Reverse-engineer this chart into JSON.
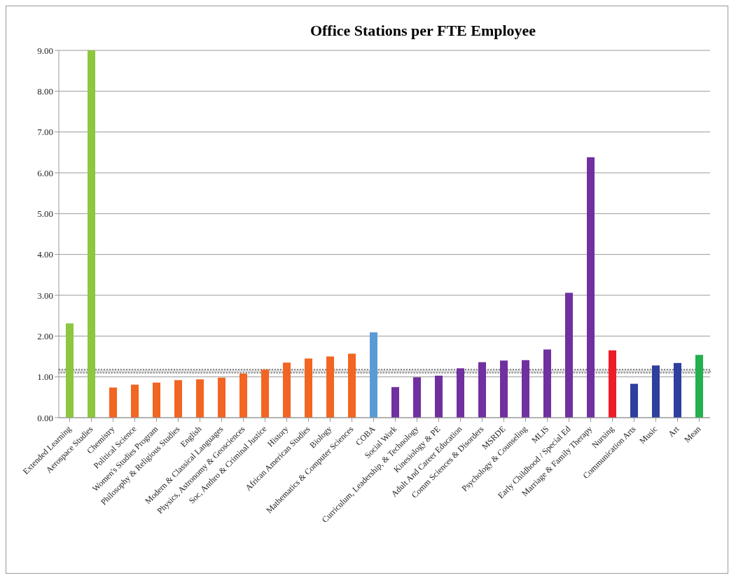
{
  "chart_data": {
    "type": "bar",
    "title": "Office Stations per FTE Employee",
    "categories": [
      "Extended Learning",
      "Aerospace Studies",
      "Chemistry",
      "Political Science",
      "Women's Studies Program",
      "Philosophy & Religious Studies",
      "English",
      "Modern & Classical Languages",
      "Physics, Astronomy & Geosciences",
      "Soc, Anthro & Criminal Justice",
      "History",
      "African American Studies",
      "Biology",
      "Mathematics & Computer Sciences",
      "COBA",
      "Social Work",
      "Curriculum, Leadership, & Technology",
      "Kinesiology & PE",
      "Adult And Career Education",
      "Comm Sciences & Disorders",
      "MSRDE",
      "Psychology & Counseling",
      "MLIS",
      "Early Childhood / Special Ed",
      "Marriage & Family Therapy",
      "Nursing",
      "Communication Arts",
      "Music",
      "Art",
      "Mean"
    ],
    "values": [
      2.31,
      9.0,
      0.74,
      0.81,
      0.86,
      0.92,
      0.94,
      0.98,
      1.08,
      1.18,
      1.35,
      1.45,
      1.5,
      1.57,
      2.09,
      0.75,
      0.99,
      1.03,
      1.21,
      1.36,
      1.4,
      1.41,
      1.67,
      3.06,
      6.38,
      1.65,
      0.83,
      1.28,
      1.34,
      1.54
    ],
    "colors": [
      "#8dc63f",
      "#8dc63f",
      "#f26522",
      "#f26522",
      "#f26522",
      "#f26522",
      "#f26522",
      "#f26522",
      "#f26522",
      "#f26522",
      "#f26522",
      "#f26522",
      "#f26522",
      "#f26522",
      "#5b9bd5",
      "#7030a0",
      "#7030a0",
      "#7030a0",
      "#7030a0",
      "#7030a0",
      "#7030a0",
      "#7030a0",
      "#7030a0",
      "#7030a0",
      "#7030a0",
      "#ee1c25",
      "#2e3f9e",
      "#2e3f9e",
      "#2e3f9e",
      "#22b14c"
    ],
    "ylim": [
      0,
      9
    ],
    "yticks": [
      {
        "value": 0,
        "label": "0.00"
      },
      {
        "value": 1,
        "label": "1.00"
      },
      {
        "value": 2,
        "label": "2.00"
      },
      {
        "value": 3,
        "label": "3.00"
      },
      {
        "value": 4,
        "label": "4.00"
      },
      {
        "value": 5,
        "label": "5.00"
      },
      {
        "value": 6,
        "label": "6.00"
      },
      {
        "value": 7,
        "label": "7.00"
      },
      {
        "value": 8,
        "label": "8.00"
      },
      {
        "value": 9,
        "label": "9.00"
      }
    ],
    "grid": "y",
    "bands": [
      {
        "axis": "y",
        "from": 1.1,
        "to": 1.18,
        "color": "#808080"
      }
    ]
  }
}
